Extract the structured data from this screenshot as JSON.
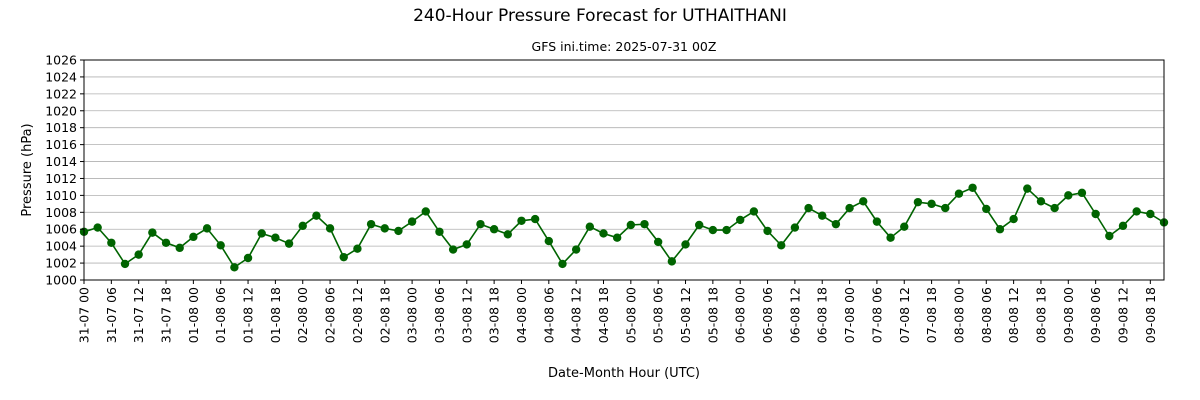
{
  "colors": {
    "series": "#006400",
    "grid": "#b0b0b0",
    "axis": "#000000"
  },
  "chart_data": {
    "type": "line",
    "title": "240-Hour Pressure Forecast for UTHAITHANI",
    "subtitle": "GFS ini.time: 2025-07-31 00Z",
    "xlabel": "Date-Month Hour (UTC)",
    "ylabel": "Pressure (hPa)",
    "ylim": [
      1000,
      1026
    ],
    "y_ticks": [
      1000,
      1002,
      1004,
      1006,
      1008,
      1010,
      1012,
      1014,
      1016,
      1018,
      1020,
      1022,
      1024,
      1026
    ],
    "grid": "horizontal",
    "x_step_hours": 3,
    "x_tick_labels": [
      "31-07 00",
      "31-07 06",
      "31-07 12",
      "31-07 18",
      "01-08 00",
      "01-08 06",
      "01-08 12",
      "01-08 18",
      "02-08 00",
      "02-08 06",
      "02-08 12",
      "02-08 18",
      "03-08 00",
      "03-08 06",
      "03-08 12",
      "03-08 18",
      "04-08 00",
      "04-08 06",
      "04-08 12",
      "04-08 18",
      "05-08 00",
      "05-08 06",
      "05-08 12",
      "05-08 18",
      "06-08 00",
      "06-08 06",
      "06-08 12",
      "06-08 18",
      "07-08 00",
      "07-08 06",
      "07-08 12",
      "07-08 18",
      "08-08 00",
      "08-08 06",
      "08-08 12",
      "08-08 18",
      "09-08 00",
      "09-08 06",
      "09-08 12",
      "09-08 18"
    ],
    "series": [
      {
        "values": [
          1005.7,
          1006.2,
          1004.4,
          1001.9,
          1003.0,
          1005.6,
          1004.4,
          1003.8,
          1005.1,
          1006.1,
          1004.1,
          1001.5,
          1002.6,
          1005.5,
          1005.0,
          1004.3,
          1006.4,
          1007.6,
          1006.1,
          1002.7,
          1003.7,
          1006.6,
          1006.1,
          1005.8,
          1006.9,
          1008.1,
          1005.7,
          1003.6,
          1004.2,
          1006.6,
          1006.0,
          1005.4,
          1007.0,
          1007.2,
          1004.6,
          1001.9,
          1003.6,
          1006.3,
          1005.5,
          1005.0,
          1006.5,
          1006.6,
          1004.5,
          1002.2,
          1004.2,
          1006.5,
          1005.9,
          1005.9,
          1007.1,
          1008.1,
          1005.8,
          1004.1,
          1006.2,
          1008.5,
          1007.6,
          1006.6,
          1008.5,
          1009.3,
          1006.9,
          1005.0,
          1006.3,
          1009.2,
          1009.0,
          1008.5,
          1010.2,
          1010.9,
          1008.4,
          1006.0,
          1007.2,
          1010.8,
          1009.3,
          1008.5,
          1010.0,
          1010.3,
          1007.8,
          1005.2,
          1006.4,
          1008.1,
          1007.8,
          1006.8
        ]
      }
    ]
  }
}
